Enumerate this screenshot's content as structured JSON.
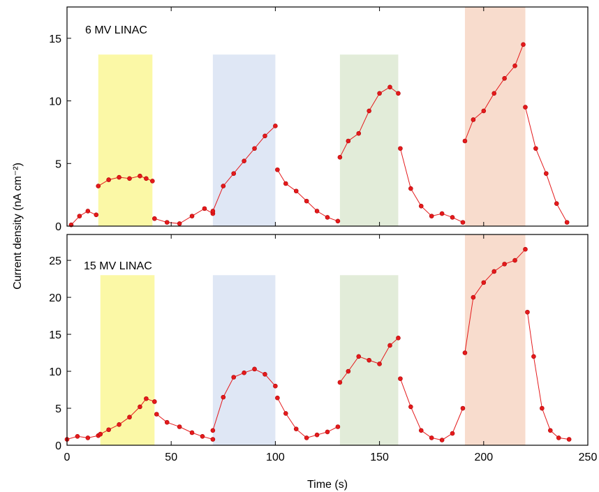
{
  "chart_data": {
    "type": "line",
    "xlabel": "Time (s)",
    "ylabel": "Current density (nA cm⁻²)",
    "xlim": [
      0,
      250
    ],
    "xticks": [
      0,
      50,
      100,
      150,
      200,
      250
    ],
    "colors": {
      "series": "#e41a1c",
      "marker_edge": "#b00000"
    },
    "panels": [
      {
        "title": "6 MV LINAC",
        "ylim": [
          0,
          17.5
        ],
        "yticks": [
          0,
          5,
          10,
          15
        ],
        "shaded_regions": [
          {
            "x": [
              15,
              41
            ],
            "top": 13.7,
            "color": "#fbf8a6"
          },
          {
            "x": [
              70,
              100
            ],
            "top": 13.7,
            "color": "#dfe7f5"
          },
          {
            "x": [
              131,
              159
            ],
            "top": 13.7,
            "color": "#e2ecd9"
          },
          {
            "x": [
              191,
              220
            ],
            "top": 17.5,
            "color": "#f8dccd"
          }
        ],
        "series": [
          {
            "x": [
              2,
              6,
              10,
              14
            ],
            "y": [
              0.1,
              0.8,
              1.2,
              0.9
            ]
          },
          {
            "x": [
              15,
              20,
              25,
              30,
              35,
              38,
              41
            ],
            "y": [
              3.2,
              3.7,
              3.9,
              3.8,
              4.0,
              3.8,
              3.6
            ]
          },
          {
            "x": [
              42,
              48,
              54,
              60,
              66,
              70
            ],
            "y": [
              0.6,
              0.3,
              0.2,
              0.8,
              1.4,
              1.0
            ]
          },
          {
            "x": [
              70,
              75,
              80,
              85,
              90,
              95,
              100
            ],
            "y": [
              1.2,
              3.2,
              4.2,
              5.2,
              6.2,
              7.2,
              8.0
            ]
          },
          {
            "x": [
              101,
              105,
              110,
              115,
              120,
              125,
              130
            ],
            "y": [
              4.5,
              3.4,
              2.8,
              2.0,
              1.2,
              0.7,
              0.4
            ]
          },
          {
            "x": [
              131,
              135,
              140,
              145,
              150,
              155,
              159
            ],
            "y": [
              5.5,
              6.8,
              7.4,
              9.2,
              10.6,
              11.1,
              10.6
            ]
          },
          {
            "x": [
              160,
              165,
              170,
              175,
              180,
              185,
              190
            ],
            "y": [
              6.2,
              3.0,
              1.6,
              0.8,
              1.0,
              0.7,
              0.3
            ]
          },
          {
            "x": [
              191,
              195,
              200,
              205,
              210,
              215,
              219
            ],
            "y": [
              6.8,
              8.5,
              9.2,
              10.6,
              11.8,
              12.8,
              14.5
            ]
          },
          {
            "x": [
              220,
              225,
              230,
              235,
              240
            ],
            "y": [
              9.5,
              6.2,
              4.2,
              1.8,
              0.3
            ]
          }
        ]
      },
      {
        "title": "15 MV LINAC",
        "ylim": [
          0,
          28.5
        ],
        "yticks": [
          0,
          5,
          10,
          15,
          20,
          25
        ],
        "shaded_regions": [
          {
            "x": [
              16,
              42
            ],
            "top": 23.0,
            "color": "#fbf8a6"
          },
          {
            "x": [
              70,
              100
            ],
            "top": 23.0,
            "color": "#dfe7f5"
          },
          {
            "x": [
              131,
              159
            ],
            "top": 23.0,
            "color": "#e2ecd9"
          },
          {
            "x": [
              191,
              220
            ],
            "top": 28.5,
            "color": "#f8dccd"
          }
        ],
        "series": [
          {
            "x": [
              0,
              5,
              10,
              15
            ],
            "y": [
              0.8,
              1.2,
              1.0,
              1.3
            ]
          },
          {
            "x": [
              16,
              20,
              25,
              30,
              35,
              38,
              42
            ],
            "y": [
              1.5,
              2.1,
              2.8,
              3.8,
              5.2,
              6.3,
              5.9
            ]
          },
          {
            "x": [
              43,
              48,
              54,
              60,
              65,
              70
            ],
            "y": [
              4.2,
              3.1,
              2.5,
              1.7,
              1.2,
              0.8
            ]
          },
          {
            "x": [
              70,
              75,
              80,
              85,
              90,
              95,
              100
            ],
            "y": [
              2.0,
              6.5,
              9.2,
              9.8,
              10.3,
              9.6,
              8.0
            ]
          },
          {
            "x": [
              101,
              105,
              110,
              115,
              120,
              125,
              130
            ],
            "y": [
              6.4,
              4.3,
              2.2,
              1.0,
              1.4,
              1.8,
              2.5
            ]
          },
          {
            "x": [
              131,
              135,
              140,
              145,
              150,
              155,
              159
            ],
            "y": [
              8.5,
              10.0,
              12.0,
              11.5,
              11.0,
              13.5,
              14.5
            ]
          },
          {
            "x": [
              160,
              165,
              170,
              175,
              180,
              185,
              190
            ],
            "y": [
              9.0,
              5.2,
              2.0,
              1.0,
              0.7,
              1.6,
              5.0
            ]
          },
          {
            "x": [
              191,
              195,
              200,
              205,
              210,
              215,
              220
            ],
            "y": [
              12.5,
              20.0,
              22.0,
              23.5,
              24.5,
              25.0,
              26.5
            ]
          },
          {
            "x": [
              221,
              224,
              228,
              232,
              236,
              241
            ],
            "y": [
              18.0,
              12.0,
              5.0,
              2.0,
              1.0,
              0.8
            ]
          }
        ]
      }
    ]
  }
}
